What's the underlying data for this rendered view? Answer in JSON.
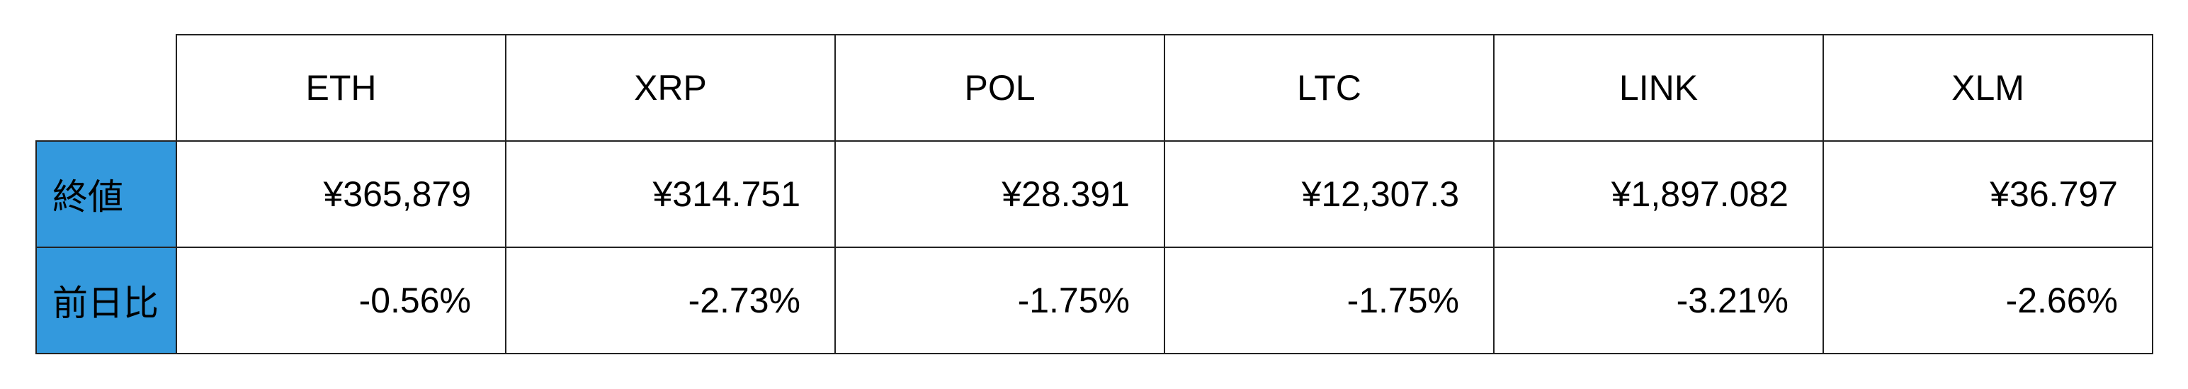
{
  "columns": [
    "ETH",
    "XRP",
    "POL",
    "LTC",
    "LINK",
    "XLM"
  ],
  "rows": [
    {
      "label": "終値",
      "values": [
        "¥365,879",
        "¥314.751",
        "¥28.391",
        "¥12,307.3",
        "¥1,897.082",
        "¥36.797"
      ]
    },
    {
      "label": "前日比",
      "values": [
        "-0.56%",
        "-2.73%",
        "-1.75%",
        "-1.75%",
        "-3.21%",
        "-2.66%"
      ]
    }
  ],
  "colors": {
    "label_bg": "#3399dd"
  }
}
